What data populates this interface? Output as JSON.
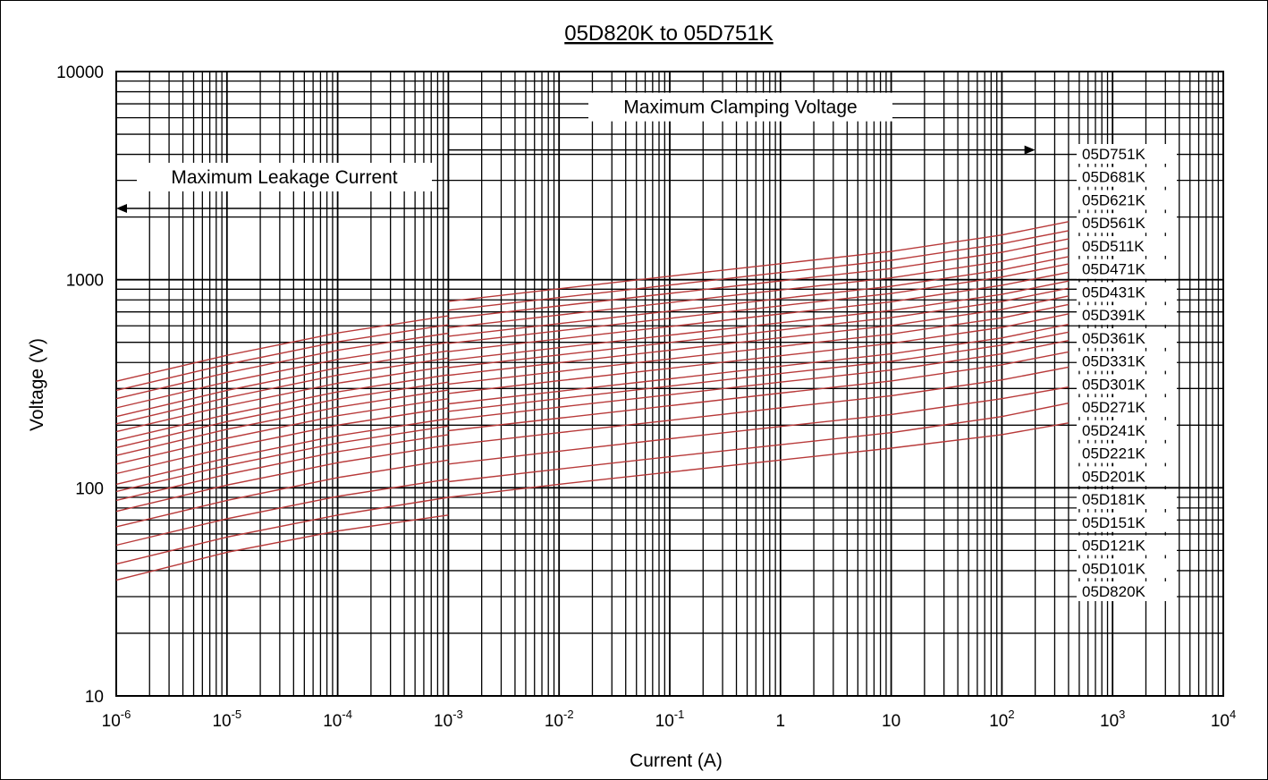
{
  "chart_data": {
    "type": "line",
    "title": "05D820K to 05D751K",
    "xlabel": "Current (A)",
    "ylabel": "Voltage (V)",
    "x_scale": "log",
    "y_scale": "log",
    "xlim": [
      1e-06,
      10000
    ],
    "ylim": [
      10,
      10000
    ],
    "x_ticks": [
      {
        "value": 1e-06,
        "base": "10",
        "exp": "-6"
      },
      {
        "value": 1e-05,
        "base": "10",
        "exp": "-5"
      },
      {
        "value": 0.0001,
        "base": "10",
        "exp": "-4"
      },
      {
        "value": 0.001,
        "base": "10",
        "exp": "-3"
      },
      {
        "value": 0.01,
        "base": "10",
        "exp": "-2"
      },
      {
        "value": 0.1,
        "base": "10",
        "exp": "-1"
      },
      {
        "value": 1,
        "base": "1",
        "exp": ""
      },
      {
        "value": 10,
        "base": "10",
        "exp": ""
      },
      {
        "value": 100,
        "base": "10",
        "exp": "2"
      },
      {
        "value": 1000,
        "base": "10",
        "exp": "3"
      },
      {
        "value": 10000,
        "base": "10",
        "exp": "4"
      }
    ],
    "y_ticks": [
      {
        "value": 10,
        "label": "10"
      },
      {
        "value": 100,
        "label": "100"
      },
      {
        "value": 1000,
        "label": "1000"
      },
      {
        "value": 10000,
        "label": "10000"
      }
    ],
    "grid": true,
    "line_color": "#b83a3a",
    "annotations": [
      {
        "text": "Maximum Clamping Voltage",
        "arrow": "right",
        "x_range": [
          0.001,
          200
        ],
        "y": 4200
      },
      {
        "text": "Maximum Leakage Current",
        "arrow": "left",
        "x_range": [
          1e-06,
          0.001
        ],
        "y": 2200
      }
    ],
    "leakage_x": [
      1e-06,
      1e-05,
      0.0001,
      0.001
    ],
    "clamping_x": [
      0.001,
      0.01,
      0.1,
      1,
      10,
      100,
      400
    ],
    "series": [
      {
        "name": "05D820K",
        "leakage": [
          36,
          49,
          62,
          74
        ],
        "clamping": [
          90,
          104,
          119,
          136,
          155,
          180,
          205
        ]
      },
      {
        "name": "05D101K",
        "leakage": [
          43,
          58,
          74,
          90
        ],
        "clamping": [
          107,
          123,
          141,
          161,
          184,
          220,
          255
        ]
      },
      {
        "name": "05D121K",
        "leakage": [
          53,
          71,
          91,
          110
        ],
        "clamping": [
          130,
          150,
          172,
          197,
          225,
          268,
          305
        ]
      },
      {
        "name": "05D151K",
        "leakage": [
          65,
          87,
          112,
          136
        ],
        "clamping": [
          160,
          184,
          211,
          242,
          277,
          330,
          380
        ]
      },
      {
        "name": "05D181K",
        "leakage": [
          77,
          103,
          132,
          160
        ],
        "clamping": [
          188,
          216,
          248,
          285,
          326,
          390,
          450
        ]
      },
      {
        "name": "05D201K",
        "leakage": [
          87,
          116,
          149,
          180
        ],
        "clamping": [
          212,
          244,
          280,
          322,
          368,
          440,
          510
        ]
      },
      {
        "name": "05D221K",
        "leakage": [
          96,
          128,
          164,
          198
        ],
        "clamping": [
          233,
          268,
          308,
          354,
          405,
          485,
          560
        ]
      },
      {
        "name": "05D241K",
        "leakage": [
          104,
          139,
          178,
          215
        ],
        "clamping": [
          253,
          291,
          334,
          384,
          440,
          525,
          610
        ]
      },
      {
        "name": "05D271K",
        "leakage": [
          117,
          156,
          200,
          242
        ],
        "clamping": [
          284,
          327,
          375,
          431,
          494,
          590,
          685
        ]
      },
      {
        "name": "05D301K",
        "leakage": [
          130,
          173,
          222,
          268
        ],
        "clamping": [
          315,
          362,
          416,
          478,
          548,
          655,
          760
        ]
      },
      {
        "name": "05D331K",
        "leakage": [
          143,
          191,
          244,
          295
        ],
        "clamping": [
          347,
          399,
          458,
          526,
          602,
          720,
          835
        ]
      },
      {
        "name": "05D361K",
        "leakage": [
          156,
          208,
          267,
          322
        ],
        "clamping": [
          378,
          435,
          499,
          573,
          657,
          785,
          910
        ]
      },
      {
        "name": "05D391K",
        "leakage": [
          169,
          225,
          289,
          349
        ],
        "clamping": [
          410,
          471,
          541,
          621,
          711,
          850,
          985
        ]
      },
      {
        "name": "05D431K",
        "leakage": [
          186,
          248,
          318,
          384
        ],
        "clamping": [
          451,
          519,
          595,
          684,
          783,
          940,
          1085
        ]
      },
      {
        "name": "05D471K",
        "leakage": [
          203,
          271,
          348,
          420
        ],
        "clamping": [
          494,
          568,
          652,
          749,
          858,
          1030,
          1190
        ]
      },
      {
        "name": "05D511K",
        "leakage": [
          220,
          294,
          377,
          455
        ],
        "clamping": [
          535,
          615,
          706,
          811,
          929,
          1115,
          1290
        ]
      },
      {
        "name": "05D561K",
        "leakage": [
          242,
          323,
          414,
          500
        ],
        "clamping": [
          588,
          676,
          776,
          892,
          1021,
          1225,
          1420
        ]
      },
      {
        "name": "05D621K",
        "leakage": [
          268,
          357,
          458,
          553
        ],
        "clamping": [
          650,
          748,
          859,
          987,
          1130,
          1355,
          1570
        ]
      },
      {
        "name": "05D681K",
        "leakage": [
          294,
          392,
          503,
          607
        ],
        "clamping": [
          713,
          820,
          942,
          1082,
          1239,
          1490,
          1720
        ]
      },
      {
        "name": "05D751K",
        "leakage": [
          325,
          433,
          555,
          670
        ],
        "clamping": [
          787,
          905,
          1039,
          1194,
          1367,
          1640,
          1900
        ]
      }
    ]
  }
}
